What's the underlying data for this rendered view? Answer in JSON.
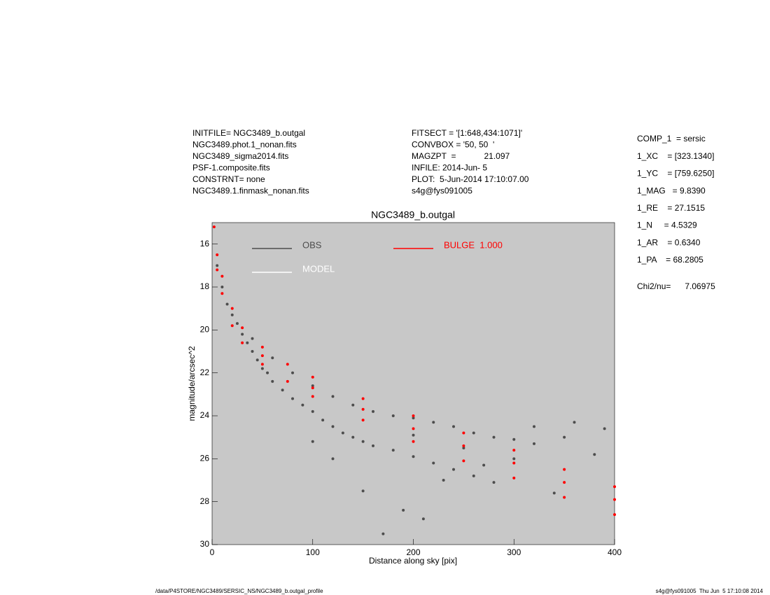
{
  "header": {
    "left": [
      "INITFILE= NGC3489_b.outgal",
      "NGC3489.phot.1_nonan.fits",
      "NGC3489_sigma2014.fits",
      "PSF-1.composite.fits",
      "CONSTRNT= none",
      "NGC3489.1.finmask_nonan.fits"
    ],
    "middle": [
      "FITSECT = '[1:648,434:1071]'",
      "CONVBOX = '50, 50  '",
      "MAGZPT  =            21.097",
      "INFILE: 2014-Jun- 5",
      "PLOT:  5-Jun-2014 17:10:07.00",
      "s4g@fys091005"
    ],
    "right": [
      "COMP_1  = sersic",
      "1_XC    = [323.1340]",
      "1_YC    = [759.6250]",
      "1_MAG   = 9.8390",
      "1_RE    = 27.1515",
      "1_N     = 4.5329",
      "1_AR    = 0.6340",
      "1_PA    = 68.2805"
    ],
    "chi2": "Chi2/nu=      7.06975"
  },
  "footer": {
    "left": "/data/P4STORE/NGC3489/SERSIC_NS/NGC3489_b.outgal_profile",
    "right": "s4g@fys091005  Thu Jun  5 17:10:08 2014"
  },
  "chart_data": {
    "type": "scatter",
    "title": "NGC3489_b.outgal",
    "x_label": "Distance along sky [pix]",
    "y_label": "magnitude/arcsec^2",
    "xlim": [
      0,
      400
    ],
    "xticks": [
      0,
      100,
      200,
      300,
      400
    ],
    "ylim": [
      30,
      15
    ],
    "yticks": [
      16,
      18,
      20,
      22,
      24,
      26,
      28,
      30
    ],
    "background": "#c8c8c8",
    "series": [
      {
        "name": "OBS",
        "color": "#4d4d4d",
        "x": [
          5,
          10,
          15,
          20,
          25,
          30,
          35,
          40,
          45,
          50,
          55,
          60,
          70,
          80,
          90,
          100,
          110,
          120,
          130,
          140,
          150,
          160,
          40,
          60,
          80,
          100,
          120,
          140,
          160,
          180,
          200,
          220,
          240,
          260,
          280,
          300,
          320,
          180,
          200,
          220,
          240,
          260,
          280,
          200,
          250,
          300,
          350,
          380,
          150,
          190,
          230,
          270,
          320,
          360,
          390,
          120,
          100,
          170,
          210,
          340
        ],
        "values": [
          17.0,
          18.0,
          18.8,
          19.3,
          19.7,
          20.2,
          20.6,
          21.0,
          21.4,
          21.8,
          22.0,
          22.4,
          22.8,
          23.2,
          23.5,
          23.8,
          24.2,
          24.5,
          24.8,
          25.0,
          25.2,
          25.4,
          20.4,
          21.3,
          22.0,
          22.6,
          23.1,
          23.5,
          23.8,
          24.0,
          24.1,
          24.3,
          24.5,
          24.8,
          25.0,
          25.1,
          25.3,
          25.6,
          25.9,
          26.2,
          26.5,
          26.8,
          27.1,
          24.9,
          25.5,
          26.0,
          25.0,
          25.8,
          27.5,
          28.4,
          27.0,
          26.3,
          24.5,
          24.3,
          24.6,
          26.0,
          25.2,
          29.5,
          28.8,
          27.6
        ]
      },
      {
        "name": "MODEL",
        "color": "#ffffff",
        "x": [],
        "values": []
      },
      {
        "name": "BULGE  1.000",
        "color": "#ff0000",
        "x": [
          2,
          5,
          10,
          20,
          30,
          50,
          75,
          100,
          150,
          200,
          250,
          300,
          350,
          400,
          5,
          10,
          20,
          30,
          50,
          75,
          100,
          150,
          200,
          250,
          300,
          350,
          400,
          50,
          100,
          150,
          200,
          250,
          300,
          350,
          400
        ],
        "values": [
          15.2,
          16.5,
          17.5,
          19.0,
          19.9,
          20.8,
          21.6,
          22.2,
          23.2,
          24.0,
          24.8,
          25.6,
          26.5,
          27.3,
          17.2,
          18.3,
          19.8,
          20.6,
          21.6,
          22.4,
          23.1,
          24.2,
          25.2,
          26.1,
          26.9,
          27.8,
          28.6,
          21.2,
          22.7,
          23.7,
          24.6,
          25.4,
          26.2,
          27.1,
          27.9
        ]
      }
    ]
  }
}
